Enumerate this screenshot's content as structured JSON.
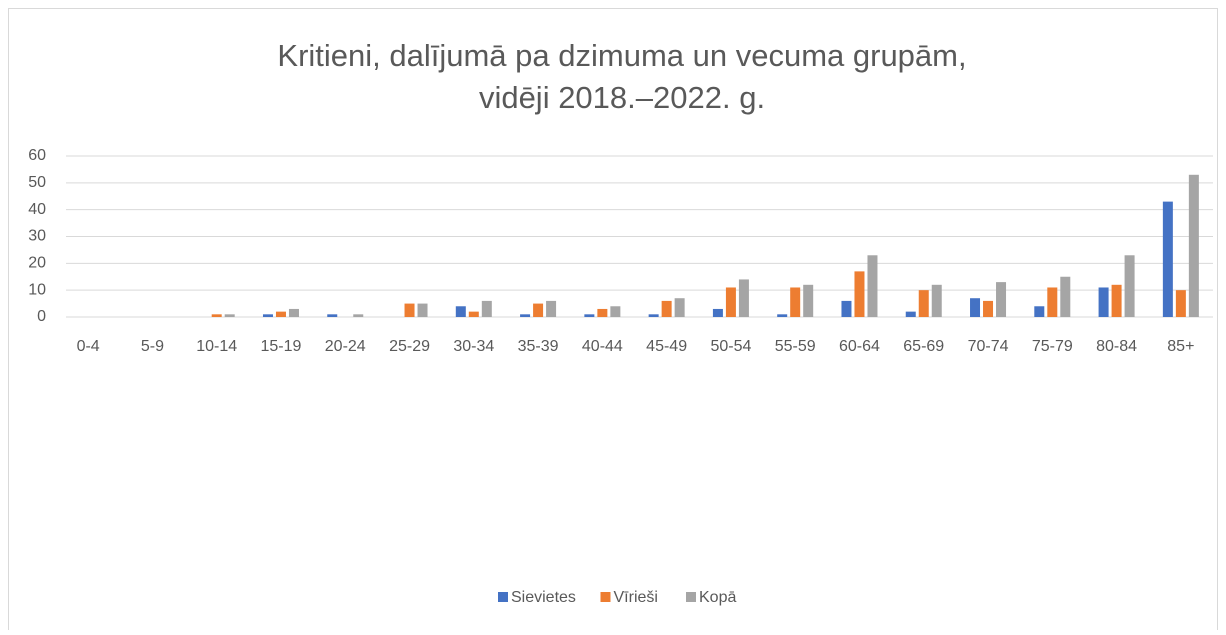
{
  "chart_data": {
    "type": "bar",
    "title": [
      "Kritieni, dalījumā pa dzimuma un vecuma grupām,",
      "vidēji  2018.–2022. g."
    ],
    "categories": [
      "0-4",
      "5-9",
      "10-14",
      "15-19",
      "20-24",
      "25-29",
      "30-34",
      "35-39",
      "40-44",
      "45-49",
      "50-54",
      "55-59",
      "60-64",
      "65-69",
      "70-74",
      "75-79",
      "80-84",
      "85+"
    ],
    "series": [
      {
        "name": "Sievietes",
        "color": "#4472c4",
        "values": [
          0,
          0,
          0,
          1,
          1,
          0,
          4,
          1,
          1,
          1,
          3,
          1,
          6,
          2,
          7,
          4,
          11,
          43
        ]
      },
      {
        "name": "Vīrieši",
        "color": "#ed7d31",
        "values": [
          0,
          0,
          1,
          2,
          0,
          5,
          2,
          5,
          3,
          6,
          11,
          11,
          17,
          10,
          6,
          11,
          12,
          10
        ]
      },
      {
        "name": "Kopā",
        "color": "#a5a5a5",
        "values": [
          0,
          0,
          1,
          3,
          1,
          5,
          6,
          6,
          4,
          7,
          14,
          12,
          23,
          12,
          13,
          15,
          23,
          53
        ]
      }
    ],
    "ylim": [
      0,
      60
    ],
    "yticks": [
      0,
      10,
      20,
      30,
      40,
      50,
      60
    ],
    "grid": true,
    "legend": "bottom"
  }
}
